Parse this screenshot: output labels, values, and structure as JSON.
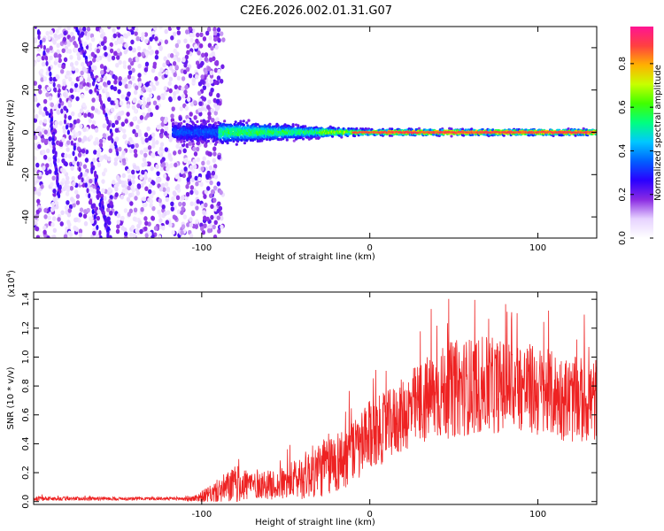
{
  "title": "C2E6.2026.002.01.31.G07",
  "chart_data": [
    {
      "type": "heatmap",
      "name": "spectrogram",
      "xlabel": "Height of straight line (km)",
      "ylabel": "Frequency (Hz)",
      "xlim": [
        -200,
        135
      ],
      "ylim": [
        -50,
        50
      ],
      "xticks": [
        -100,
        0,
        100
      ],
      "yticks": [
        -40,
        -20,
        0,
        20,
        40
      ],
      "colorbar": {
        "label": "Normalized spectral amplitude",
        "range": [
          0,
          0.97
        ],
        "ticks": [
          "0.0",
          "0.2",
          "0.4",
          "0.6",
          "0.8"
        ],
        "tick_values": [
          0.0,
          0.2,
          0.4,
          0.6,
          0.8
        ],
        "colors": [
          "#ffffff",
          "#e6d2ff",
          "#8a2be2",
          "#2a00ff",
          "#0060ff",
          "#00c8ff",
          "#00ff80",
          "#40ff00",
          "#c8ff00",
          "#ffb000",
          "#ff4040",
          "#ff1493"
        ]
      },
      "features": {
        "noise_region_x": [
          -200,
          -95
        ],
        "line_start_x": -117,
        "center_frequency_hz": 0,
        "band_halfwidth_hz": [
          [
            -117,
            6
          ],
          [
            -80,
            7
          ],
          [
            -40,
            4
          ],
          [
            0,
            2
          ],
          [
            135,
            2
          ]
        ]
      }
    },
    {
      "type": "line",
      "name": "snr",
      "xlabel": "Height of straight line (km)",
      "ylabel": "SNR (10 * v/v)",
      "scale_label": "(x10",
      "scale_exp": "4",
      "xlim": [
        -200,
        135
      ],
      "ylim": [
        -0.02,
        1.45
      ],
      "xticks": [
        -100,
        0,
        100
      ],
      "yticks": [
        "0.0",
        "0.2",
        "0.4",
        "0.6",
        "0.8",
        "1.0",
        "1.2",
        "1.4"
      ],
      "ytick_values": [
        0.0,
        0.2,
        0.4,
        0.6,
        0.8,
        1.0,
        1.2,
        1.4
      ],
      "color": "#ee2222",
      "envelope": {
        "x": [
          -200,
          -120,
          -105,
          -95,
          -88,
          -80,
          -65,
          -55,
          -45,
          -35,
          -25,
          -15,
          -5,
          0,
          10,
          20,
          30,
          40,
          50,
          60,
          70,
          80,
          90,
          100,
          110,
          120,
          135
        ],
        "mean": [
          0.02,
          0.02,
          0.02,
          0.05,
          0.08,
          0.12,
          0.12,
          0.11,
          0.15,
          0.2,
          0.25,
          0.3,
          0.38,
          0.45,
          0.52,
          0.6,
          0.68,
          0.74,
          0.78,
          0.8,
          0.8,
          0.8,
          0.8,
          0.76,
          0.74,
          0.7,
          0.7
        ],
        "spread": [
          0.015,
          0.01,
          0.02,
          0.06,
          0.1,
          0.13,
          0.1,
          0.1,
          0.14,
          0.18,
          0.22,
          0.22,
          0.24,
          0.25,
          0.24,
          0.26,
          0.3,
          0.32,
          0.34,
          0.34,
          0.34,
          0.32,
          0.32,
          0.32,
          0.3,
          0.3,
          0.3
        ],
        "peak": 1.42
      }
    }
  ]
}
